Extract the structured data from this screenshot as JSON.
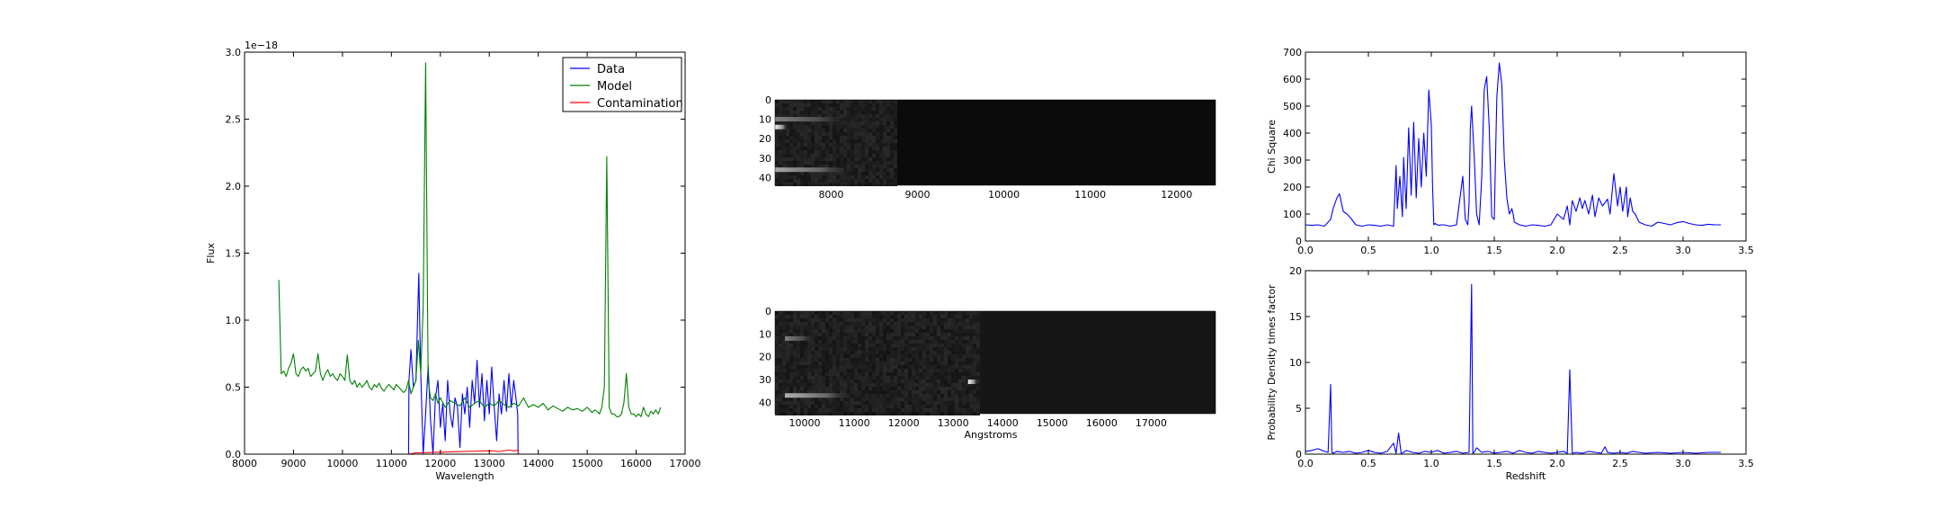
{
  "chart_data": [
    {
      "type": "line",
      "panel": "spectrum",
      "xlabel": "Wavelength",
      "ylabel": "Flux",
      "offset_text": "1e−18",
      "xlim": [
        8000,
        17000
      ],
      "ylim": [
        0,
        3.0
      ],
      "xticks": [
        "8000",
        "9000",
        "10000",
        "11000",
        "12000",
        "13000",
        "14000",
        "15000",
        "16000",
        "17000"
      ],
      "yticks": [
        "0.0",
        "0.5",
        "1.0",
        "1.5",
        "2.0",
        "2.5",
        "3.0"
      ],
      "legend_position": "upper right",
      "series": [
        {
          "name": "Data",
          "color": "#0000ff",
          "x": [
            8700,
            11350,
            11360,
            11400,
            11450,
            11500,
            11560,
            11600,
            11650,
            11700,
            11750,
            11800,
            11850,
            11900,
            11950,
            12000,
            12050,
            12100,
            12150,
            12200,
            12250,
            12300,
            12350,
            12400,
            12450,
            12500,
            12550,
            12600,
            12650,
            12700,
            12750,
            12800,
            12850,
            12900,
            12950,
            13000,
            13050,
            13100,
            13150,
            13200,
            13250,
            13300,
            13350,
            13400,
            13450,
            13500,
            13550,
            13580,
            13590,
            16500
          ],
          "y": [
            0,
            0,
            0.55,
            0.78,
            0.5,
            0.55,
            1.35,
            0.6,
            0.0,
            0.3,
            0.66,
            0.25,
            0.0,
            0.42,
            0.55,
            0.2,
            0.38,
            0.1,
            0.55,
            0.3,
            0.2,
            0.42,
            0.35,
            0.05,
            0.45,
            0.3,
            0.5,
            0.2,
            0.55,
            0.38,
            0.7,
            0.35,
            0.6,
            0.25,
            0.55,
            0.3,
            0.65,
            0.35,
            0.1,
            0.45,
            0.3,
            0.55,
            0.32,
            0.6,
            0.35,
            0.55,
            0.4,
            0.3,
            0,
            0
          ]
        },
        {
          "name": "Model",
          "color": "#008000",
          "x": [
            8700,
            8750,
            8800,
            8850,
            8900,
            8950,
            9000,
            9050,
            9100,
            9150,
            9200,
            9250,
            9300,
            9350,
            9400,
            9450,
            9500,
            9550,
            9600,
            9650,
            9700,
            9750,
            9800,
            9850,
            9900,
            9950,
            10000,
            10050,
            10100,
            10150,
            10200,
            10250,
            10300,
            10350,
            10400,
            10450,
            10500,
            10550,
            10600,
            10650,
            10700,
            10750,
            10800,
            10850,
            10900,
            10950,
            11000,
            11050,
            11100,
            11150,
            11200,
            11250,
            11300,
            11350,
            11400,
            11450,
            11500,
            11550,
            11600,
            11650,
            11700,
            11750,
            11800,
            11850,
            11900,
            11950,
            12000,
            12100,
            12200,
            12300,
            12400,
            12500,
            12600,
            12700,
            12800,
            12900,
            13000,
            13100,
            13200,
            13300,
            13400,
            13500,
            13600,
            13700,
            13800,
            13900,
            14000,
            14100,
            14200,
            14300,
            14400,
            14500,
            14600,
            14700,
            14800,
            14900,
            15000,
            15100,
            15150,
            15200,
            15250,
            15300,
            15350,
            15400,
            15450,
            15500,
            15550,
            15600,
            15650,
            15700,
            15750,
            15800,
            15850,
            15900,
            15950,
            16000,
            16050,
            16100,
            16150,
            16200,
            16250,
            16300,
            16350,
            16400,
            16450,
            16500
          ],
          "y": [
            1.3,
            0.6,
            0.62,
            0.58,
            0.64,
            0.68,
            0.75,
            0.6,
            0.58,
            0.63,
            0.65,
            0.62,
            0.64,
            0.58,
            0.6,
            0.62,
            0.75,
            0.6,
            0.55,
            0.6,
            0.63,
            0.58,
            0.6,
            0.57,
            0.55,
            0.6,
            0.58,
            0.55,
            0.74,
            0.55,
            0.52,
            0.55,
            0.5,
            0.53,
            0.5,
            0.52,
            0.55,
            0.5,
            0.48,
            0.52,
            0.5,
            0.53,
            0.49,
            0.47,
            0.5,
            0.52,
            0.5,
            0.48,
            0.52,
            0.5,
            0.48,
            0.46,
            0.48,
            0.55,
            0.45,
            0.5,
            0.55,
            0.85,
            0.6,
            1.1,
            2.92,
            0.55,
            0.42,
            0.4,
            0.45,
            0.38,
            0.42,
            0.35,
            0.4,
            0.38,
            0.36,
            0.42,
            0.35,
            0.38,
            0.4,
            0.35,
            0.38,
            0.36,
            0.4,
            0.37,
            0.35,
            0.38,
            0.36,
            0.42,
            0.35,
            0.37,
            0.35,
            0.38,
            0.33,
            0.36,
            0.34,
            0.32,
            0.35,
            0.33,
            0.34,
            0.32,
            0.35,
            0.31,
            0.33,
            0.32,
            0.3,
            0.35,
            0.5,
            2.22,
            0.35,
            0.3,
            0.3,
            0.28,
            0.28,
            0.3,
            0.38,
            0.6,
            0.35,
            0.3,
            0.3,
            0.28,
            0.3,
            0.28,
            0.35,
            0.3,
            0.28,
            0.32,
            0.3,
            0.33,
            0.3,
            0.35
          ]
        },
        {
          "name": "Contamination",
          "color": "#ff0000",
          "x": [
            8700,
            11350,
            11500,
            12000,
            12500,
            13000,
            13200,
            13400,
            13500,
            13580,
            13600,
            16500
          ],
          "y": [
            0,
            0,
            0.01,
            0.015,
            0.02,
            0.025,
            0.02,
            0.03,
            0.025,
            0.03,
            0,
            0
          ]
        }
      ]
    },
    {
      "type": "heatmap",
      "panel": "2d-spectrum-top",
      "xlim": [
        7350,
        12450
      ],
      "ylim": [
        44,
        0
      ],
      "xticks": [
        "8000",
        "9000",
        "10000",
        "11000",
        "12000"
      ],
      "yticks": [
        "0",
        "10",
        "20",
        "30",
        "40"
      ],
      "traces": [
        {
          "row": 10,
          "x_start": 7350,
          "x_end": 8200,
          "peak": 0.35
        },
        {
          "row": 14,
          "x_start": 7350,
          "x_end": 7500,
          "peak": 0.95
        },
        {
          "row": 36,
          "x_start": 7350,
          "x_end": 8250,
          "peak": 0.55
        }
      ],
      "signal_end_x": 8750
    },
    {
      "type": "heatmap",
      "panel": "2d-spectrum-bottom",
      "xlabel": "Angstroms",
      "xlim": [
        9400,
        18300
      ],
      "ylim": [
        45,
        0
      ],
      "xticks": [
        "10000",
        "11000",
        "12000",
        "13000",
        "14000",
        "15000",
        "16000",
        "17000"
      ],
      "yticks": [
        "0",
        "10",
        "20",
        "30",
        "40"
      ],
      "traces": [
        {
          "row": 12,
          "x_start": 9600,
          "x_end": 10200,
          "peak": 0.35
        },
        {
          "row": 37,
          "x_start": 9600,
          "x_end": 11000,
          "peak": 0.6
        },
        {
          "row": 31,
          "x_start": 13300,
          "x_end": 13500,
          "peak": 0.95
        }
      ],
      "signal_end_x": 13500
    },
    {
      "type": "line",
      "panel": "chi-square",
      "ylabel": "Chi Square",
      "xlim": [
        0,
        3.5
      ],
      "ylim": [
        0,
        700
      ],
      "xticks": [
        "0.0",
        "0.5",
        "1.0",
        "1.5",
        "2.0",
        "2.5",
        "3.0",
        "3.5"
      ],
      "yticks": [
        "0",
        "100",
        "200",
        "300",
        "400",
        "500",
        "600",
        "700"
      ],
      "series": [
        {
          "color": "#0000ff",
          "x": [
            0.0,
            0.05,
            0.1,
            0.15,
            0.2,
            0.22,
            0.25,
            0.27,
            0.3,
            0.33,
            0.36,
            0.4,
            0.45,
            0.5,
            0.55,
            0.6,
            0.65,
            0.7,
            0.72,
            0.73,
            0.75,
            0.77,
            0.78,
            0.8,
            0.82,
            0.84,
            0.86,
            0.88,
            0.9,
            0.92,
            0.94,
            0.96,
            0.98,
            1.0,
            1.01,
            1.02,
            1.03,
            1.04,
            1.06,
            1.08,
            1.1,
            1.15,
            1.2,
            1.25,
            1.27,
            1.29,
            1.3,
            1.31,
            1.32,
            1.34,
            1.36,
            1.38,
            1.4,
            1.42,
            1.44,
            1.46,
            1.48,
            1.5,
            1.52,
            1.54,
            1.56,
            1.58,
            1.6,
            1.62,
            1.64,
            1.65,
            1.66,
            1.68,
            1.7,
            1.72,
            1.75,
            1.8,
            1.85,
            1.9,
            1.95,
            2.0,
            2.05,
            2.08,
            2.1,
            2.12,
            2.15,
            2.18,
            2.2,
            2.22,
            2.25,
            2.28,
            2.3,
            2.33,
            2.36,
            2.4,
            2.42,
            2.45,
            2.48,
            2.5,
            2.52,
            2.55,
            2.56,
            2.58,
            2.6,
            2.62,
            2.65,
            2.7,
            2.75,
            2.8,
            2.85,
            2.9,
            2.95,
            3.0,
            3.05,
            3.1,
            3.15,
            3.2,
            3.25,
            3.3
          ],
          "y": [
            60,
            58,
            60,
            55,
            80,
            120,
            160,
            175,
            110,
            100,
            85,
            60,
            55,
            60,
            58,
            55,
            60,
            55,
            280,
            120,
            240,
            90,
            310,
            120,
            420,
            170,
            440,
            160,
            380,
            200,
            400,
            240,
            560,
            430,
            200,
            60,
            65,
            62,
            58,
            60,
            60,
            55,
            60,
            240,
            80,
            60,
            140,
            420,
            500,
            320,
            100,
            60,
            230,
            560,
            610,
            420,
            90,
            80,
            530,
            660,
            580,
            300,
            160,
            100,
            120,
            100,
            70,
            65,
            60,
            58,
            55,
            60,
            58,
            55,
            60,
            100,
            80,
            130,
            60,
            150,
            110,
            160,
            120,
            150,
            100,
            170,
            90,
            160,
            130,
            155,
            100,
            250,
            130,
            200,
            110,
            200,
            90,
            160,
            110,
            100,
            70,
            60,
            55,
            70,
            65,
            60,
            68,
            72,
            65,
            60,
            58,
            62,
            60,
            60
          ]
        }
      ]
    },
    {
      "type": "line",
      "panel": "probability-density",
      "xlabel": "Redshift",
      "ylabel": "Probability Density times factor",
      "xlim": [
        0,
        3.5
      ],
      "ylim": [
        0,
        20
      ],
      "xticks": [
        "0.0",
        "0.5",
        "1.0",
        "1.5",
        "2.0",
        "2.5",
        "3.0",
        "3.5"
      ],
      "yticks": [
        "0",
        "5",
        "10",
        "15",
        "20"
      ],
      "series": [
        {
          "color": "#0000ff",
          "x": [
            0.0,
            0.05,
            0.1,
            0.15,
            0.18,
            0.2,
            0.21,
            0.22,
            0.25,
            0.3,
            0.35,
            0.4,
            0.45,
            0.5,
            0.55,
            0.6,
            0.65,
            0.7,
            0.72,
            0.74,
            0.76,
            0.78,
            0.8,
            0.85,
            0.9,
            0.95,
            1.0,
            1.05,
            1.1,
            1.15,
            1.2,
            1.25,
            1.3,
            1.32,
            1.33,
            1.34,
            1.36,
            1.4,
            1.45,
            1.5,
            1.55,
            1.6,
            1.65,
            1.7,
            1.75,
            1.8,
            1.85,
            1.9,
            1.95,
            2.0,
            2.05,
            2.08,
            2.1,
            2.12,
            2.15,
            2.2,
            2.25,
            2.3,
            2.35,
            2.38,
            2.4,
            2.45,
            2.5,
            2.55,
            2.6,
            2.65,
            2.7,
            2.8,
            2.9,
            3.0,
            3.1,
            3.2,
            3.3
          ],
          "y": [
            0.3,
            0.4,
            0.6,
            0.3,
            0.2,
            7.6,
            0.2,
            0.1,
            0.3,
            0.2,
            0.3,
            0.1,
            0.2,
            0.4,
            0.2,
            0.1,
            0.3,
            1.2,
            0.1,
            2.3,
            0.1,
            0.2,
            0.4,
            0.2,
            0.1,
            0.3,
            0.2,
            0.4,
            0.1,
            0.2,
            0.3,
            0.1,
            0.2,
            18.5,
            0.1,
            0.2,
            0.7,
            0.2,
            0.3,
            0.1,
            0.2,
            0.3,
            0.1,
            0.4,
            0.2,
            0.1,
            0.3,
            0.2,
            0.1,
            0.2,
            0.3,
            0.1,
            9.2,
            0.1,
            0.2,
            0.1,
            0.3,
            0.2,
            0.1,
            0.8,
            0.2,
            0.1,
            0.2,
            0.1,
            0.3,
            0.2,
            0.1,
            0.2,
            0.1,
            0.2,
            0.1,
            0.2,
            0.2
          ]
        }
      ]
    }
  ]
}
